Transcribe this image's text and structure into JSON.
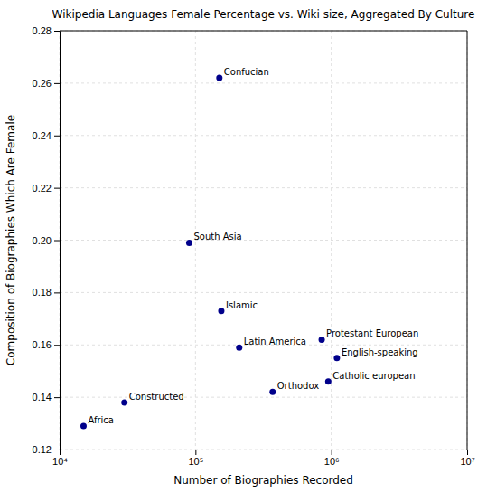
{
  "chart_data": {
    "type": "scatter",
    "title": "Wikipedia Languages Female Percentage vs. Wiki size, Aggregated By Culture",
    "xlabel": "Number of Biographies Recorded",
    "ylabel": "Composition of Biographies Which Are Female",
    "labels": [
      "Confucian",
      "South Asia",
      "Islamic",
      "Latin America",
      "Protestant European",
      "English-speaking",
      "Catholic european",
      "Orthodox",
      "Constructed",
      "Africa"
    ],
    "x": [
      150000,
      90000,
      155000,
      210000,
      850000,
      1100000,
      950000,
      370000,
      30000,
      15000
    ],
    "values": [
      0.262,
      0.199,
      0.173,
      0.159,
      0.162,
      0.155,
      0.146,
      0.142,
      0.138,
      0.129
    ],
    "color": "#00008B",
    "log": "x",
    "xlim": [
      10000,
      10000000
    ],
    "ylim": [
      0.12,
      0.28
    ],
    "xticks": [
      {
        "value": 10000,
        "label": "10⁴"
      },
      {
        "value": 100000,
        "label": "10⁵"
      },
      {
        "value": 1000000,
        "label": "10⁶"
      },
      {
        "value": 10000000,
        "label": "10⁷"
      }
    ],
    "yticks": [
      0.12,
      0.14,
      0.16,
      0.18,
      {
        "value": 0.2,
        "label": "0.20"
      },
      0.22,
      0.24,
      0.26,
      0.28
    ],
    "grid": true
  }
}
